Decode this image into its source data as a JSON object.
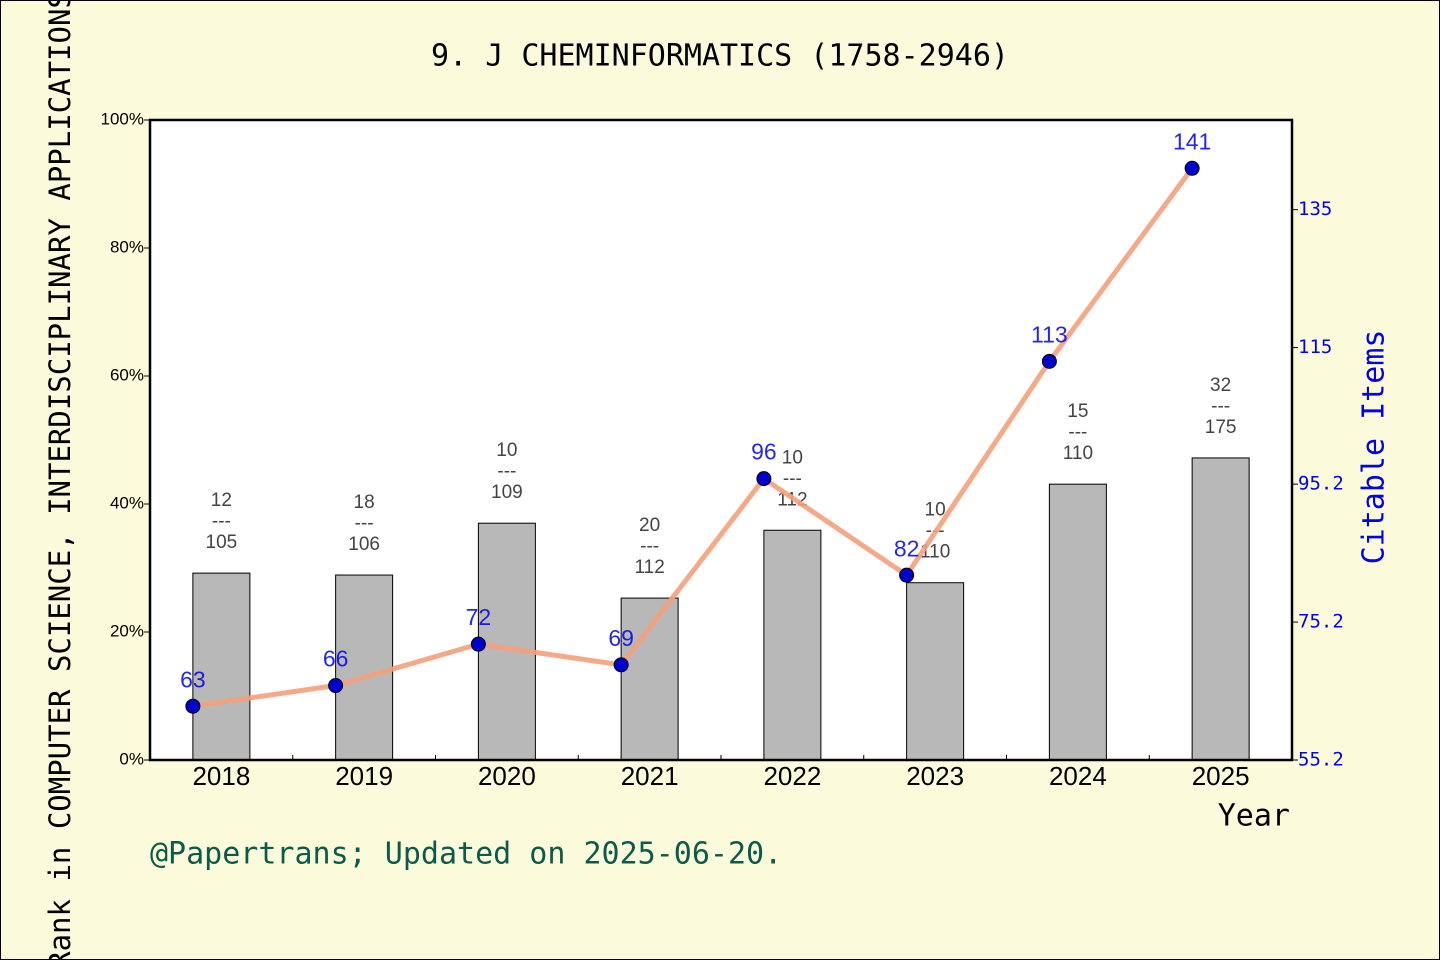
{
  "chart_data": {
    "type": "bar_line",
    "title": "9. J CHEMINFORMATICS (1758-2946)",
    "y_label": "Rank in COMPUTER SCIENCE, INTERDISCIPLINARY APPLICATIONS",
    "y2_label": "Citable Items",
    "x_label": "Year",
    "footer": "@Papertrans; Updated on 2025-06-20.",
    "categories": [
      "2018",
      "2019",
      "2020",
      "2021",
      "2022",
      "2023",
      "2024",
      "2025"
    ],
    "series": [
      {
        "type": "bar",
        "color": "#b8b8b8",
        "values": [
          29.2,
          28.9,
          37.0,
          25.3,
          35.9,
          27.7,
          43.1,
          47.2
        ],
        "value_labels": [
          [
            "12",
            "---",
            "105"
          ],
          [
            "18",
            "---",
            "106"
          ],
          [
            "10",
            "---",
            "109"
          ],
          [
            "20",
            "---",
            "112"
          ],
          [
            "10",
            "---",
            "112"
          ],
          [
            "10",
            "---",
            "110"
          ],
          [
            "15",
            "---",
            "110"
          ],
          [
            "32",
            "---",
            "175"
          ]
        ]
      },
      {
        "type": "line",
        "axis": "y2",
        "color": "#f4a07c",
        "marker_color": "#0000cc",
        "values": [
          63,
          66,
          72,
          69,
          96,
          82,
          113,
          141
        ]
      }
    ],
    "ylim": [
      0,
      100
    ],
    "yticks": [
      {
        "value": 0,
        "label": "0%"
      },
      {
        "value": 20,
        "label": "20%"
      },
      {
        "value": 40,
        "label": "40%"
      },
      {
        "value": 60,
        "label": "60%"
      },
      {
        "value": 80,
        "label": "80%"
      },
      {
        "value": 100,
        "label": "100%"
      }
    ],
    "y2lim": [
      55.2,
      148
    ],
    "y2ticks": [
      55.2,
      75.2,
      95.2,
      115,
      135
    ]
  }
}
